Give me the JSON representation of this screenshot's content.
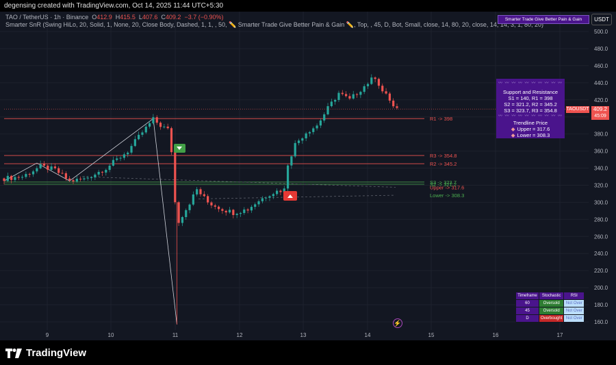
{
  "header": {
    "caption": "degensing created with TradingView.com, Oct 14, 2025 11:44 UTC+5:30"
  },
  "legend": {
    "symbol": "TAO / TetherUS · 1h · Binance",
    "ohlc": {
      "o_label": "O",
      "o": "412.9",
      "h_label": "H",
      "h": "415.5",
      "l_label": "L",
      "l": "407.6",
      "c_label": "C",
      "c": "409.2",
      "change": "−3.7 (−0.90%)"
    },
    "indicator": "Smarter SnR (Swing HiLo, 20, Solid, 1, None, 20, Close Body, Dashed, 1, 1, , 50,  ✏️ Smarter Trade Give Better Pain & Gain ✏️, Top, , 45, D, Bot, Small, close, 14, 80, 20, close, 14, 14, 3, 1, 80, 20)"
  },
  "top_badge": "Smarter Trade Give Better Pain & Gain",
  "currency_button": "USDT",
  "sr_box": {
    "dots": "〰 〰 〰 〰 〰 〰 〰 〰 〰 〰",
    "title": "Support and Resistance",
    "l1": "S1 = 140, R1 = 398",
    "l2": "S2 = 321.2, R2 = 345.2",
    "l3": "S3 = 323.7, R3 = 354.8",
    "trend_title": "Trendline Price",
    "upper": "Upper = 317.6",
    "lower": "Lower = 308.3"
  },
  "price_tags": {
    "symbol": "TAOUSDT",
    "price": "409.2",
    "countdown": "45:09"
  },
  "stat_table": {
    "headers": [
      "Timeframe",
      "Stochastic",
      "RSI"
    ],
    "rows": [
      {
        "tf": "60",
        "stoch": "Oversold",
        "rsi": "Not Over"
      },
      {
        "tf": "45",
        "stoch": "Oversold",
        "rsi": "Not Over"
      },
      {
        "tf": "D",
        "stoch": "Overbought",
        "rsi": "Not Over"
      }
    ]
  },
  "bottom_logo": "TradingView",
  "colors": {
    "bg": "#131722",
    "up": "#26a69a",
    "down": "#ef5350",
    "resistance": "#ef5350",
    "support": "#4caf50",
    "panel": "#4a148c"
  },
  "chart_data": {
    "type": "candlestick",
    "y_axis": {
      "min": 160,
      "max": 500,
      "ticks": [
        160,
        180,
        200,
        220,
        240,
        260,
        280,
        300,
        320,
        340,
        360,
        380,
        400,
        420,
        440,
        460,
        480,
        500
      ]
    },
    "x_axis": {
      "ticks": [
        "9",
        "10",
        "11",
        "12",
        "13",
        "14",
        "15",
        "16",
        "17"
      ]
    },
    "levels": [
      {
        "label": "R1 -> 398",
        "value": 398,
        "kind": "resistance"
      },
      {
        "label": "R3 -> 354.8",
        "value": 354.8,
        "kind": "resistance"
      },
      {
        "label": "R2 -> 345.2",
        "value": 345.2,
        "kind": "resistance"
      },
      {
        "label": "S3 -> 323.7",
        "value": 323.7,
        "kind": "support"
      },
      {
        "label": "S2 -> 321.2",
        "value": 321.2,
        "kind": "support"
      },
      {
        "label": "Upper -> 317.6",
        "value": 317.6,
        "kind": "trend-upper"
      },
      {
        "label": "Lower -> 308.3",
        "value": 308.3,
        "kind": "trend-lower"
      }
    ],
    "last_price": 409.2,
    "path": [
      [
        0,
        328
      ],
      [
        5,
        330
      ],
      [
        10,
        342
      ],
      [
        14,
        338
      ],
      [
        18,
        325
      ],
      [
        22,
        327
      ],
      [
        28,
        340
      ],
      [
        34,
        360
      ],
      [
        38,
        382
      ],
      [
        41,
        397
      ],
      [
        43,
        390
      ],
      [
        45,
        385
      ],
      [
        46,
        360
      ],
      [
        47,
        300
      ],
      [
        48,
        278
      ],
      [
        50,
        292
      ],
      [
        53,
        315
      ],
      [
        56,
        300
      ],
      [
        60,
        292
      ],
      [
        63,
        288
      ],
      [
        67,
        292
      ],
      [
        70,
        302
      ],
      [
        73,
        310
      ],
      [
        75,
        313
      ],
      [
        77,
        315
      ],
      [
        78,
        345
      ],
      [
        80,
        368
      ],
      [
        83,
        382
      ],
      [
        86,
        390
      ],
      [
        89,
        410
      ],
      [
        92,
        428
      ],
      [
        95,
        420
      ],
      [
        98,
        432
      ],
      [
        100,
        440
      ],
      [
        102,
        447
      ],
      [
        104,
        430
      ],
      [
        106,
        420
      ],
      [
        107,
        412
      ],
      [
        108,
        409.2
      ]
    ],
    "swing_lines": [
      {
        "from": [
          0,
          325
        ],
        "to": [
          9,
          346
        ]
      },
      {
        "from": [
          9,
          346
        ],
        "to": [
          18,
          325
        ]
      },
      {
        "from": [
          18,
          325
        ],
        "to": [
          41,
          398
        ]
      },
      {
        "from": [
          41,
          398
        ],
        "to": [
          47.5,
          157
        ]
      }
    ]
  }
}
